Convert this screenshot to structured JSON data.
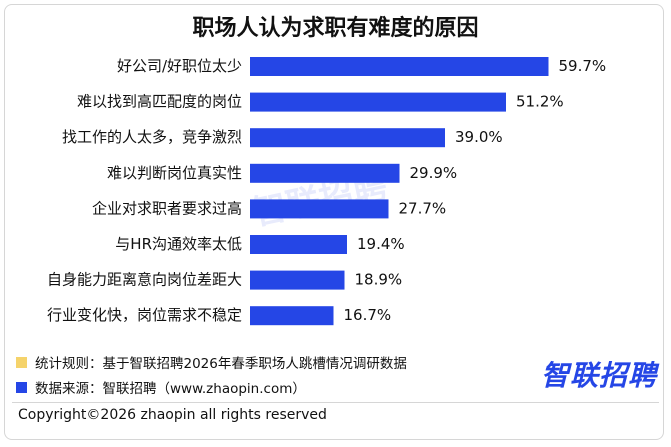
{
  "chart_data": {
    "type": "bar",
    "orientation": "horizontal",
    "title": "职场人认为求职有难度的原因",
    "categories": [
      "好公司/好职位太少",
      "难以找到高匹配度的岗位",
      "找工作的人太多，竞争激烈",
      "难以判断岗位真实性",
      "企业对求职者要求过高",
      "与HR沟通效率太低",
      "自身能力距离意向岗位差距大",
      "行业变化快，岗位需求不稳定"
    ],
    "values": [
      59.7,
      51.2,
      39.0,
      29.9,
      27.7,
      19.4,
      18.9,
      16.7
    ],
    "value_labels": [
      "59.7%",
      "51.2%",
      "39.0%",
      "29.9%",
      "27.7%",
      "19.4%",
      "18.9%",
      "16.7%"
    ],
    "unit": "%",
    "xlim": [
      0,
      70
    ],
    "grid": false,
    "bar_color": "#2546e6"
  },
  "notes": {
    "method_label": "统计规则：基于智联招聘2026年春季职场人跳槽情况调研数据",
    "method_color": "#f5d36b",
    "source_label": "数据来源：智联招聘（www.zhaopin.com）",
    "source_color": "#2546e6"
  },
  "brand": {
    "logo_text": "智联招聘",
    "watermark_text": "智联招聘"
  },
  "footer": {
    "copyright": "Copyright©2026 zhaopin all rights reserved"
  }
}
